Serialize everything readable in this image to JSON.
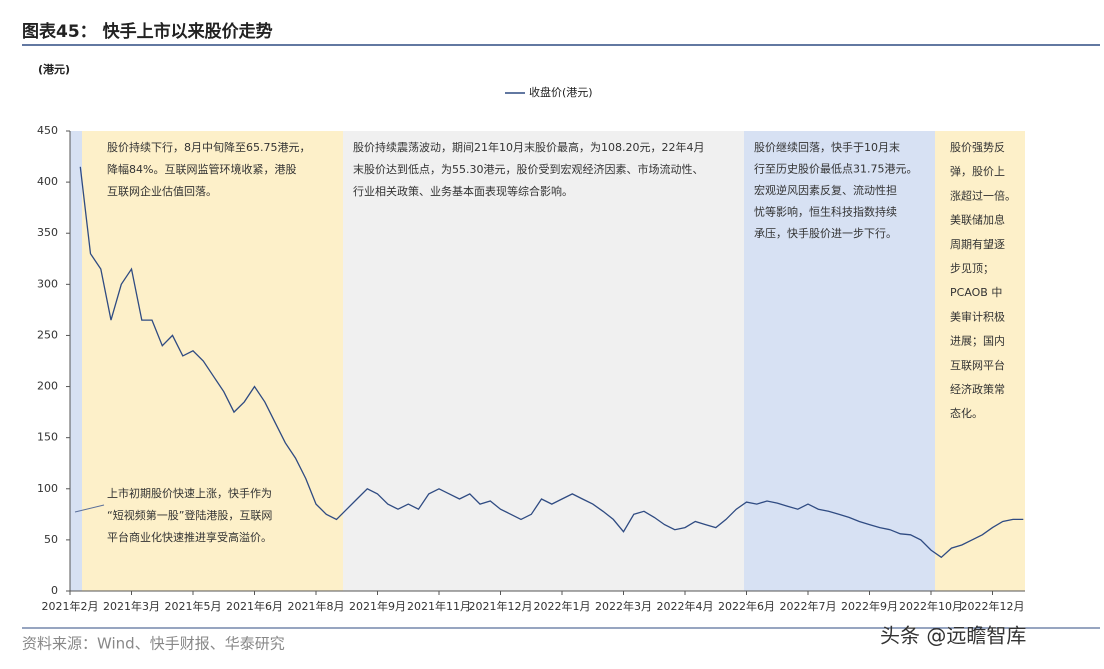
{
  "chart_data": {
    "type": "line",
    "title": "图表45： 快手上市以来股价走势",
    "y_label": "(港元)",
    "source": "资料来源：Wind、快手财报、华泰研究",
    "watermark": "头条 @远瞻智库",
    "categories": [
      "2021年2月",
      null,
      null,
      null,
      null,
      null,
      "2021年3月",
      null,
      null,
      null,
      null,
      null,
      "2021年5月",
      null,
      null,
      null,
      null,
      null,
      "2021年6月",
      null,
      null,
      null,
      null,
      null,
      "2021年8月",
      null,
      null,
      null,
      null,
      null,
      "2021年9月",
      null,
      null,
      null,
      null,
      null,
      "2021年11月",
      null,
      null,
      null,
      null,
      null,
      "2021年12月",
      null,
      null,
      null,
      null,
      null,
      "2022年1月",
      null,
      null,
      null,
      null,
      null,
      "2022年3月",
      null,
      null,
      null,
      null,
      null,
      "2022年4月",
      null,
      null,
      null,
      null,
      null,
      "2022年6月",
      null,
      null,
      null,
      null,
      null,
      "2022年7月",
      null,
      null,
      null,
      null,
      null,
      "2022年9月",
      null,
      null,
      null,
      null,
      null,
      "2022年10月",
      null,
      null,
      null,
      null,
      null,
      "2022年12月",
      null,
      null,
      null
    ],
    "series": [
      {
        "name": "收盘价(港元)",
        "color": "#2f4b82",
        "values": [
          null,
          415,
          330,
          315,
          265,
          300,
          315,
          265,
          265,
          240,
          250,
          230,
          235,
          225,
          210,
          195,
          175,
          185,
          200,
          185,
          165,
          145,
          130,
          110,
          85,
          75,
          70,
          80,
          90,
          100,
          95,
          85,
          80,
          85,
          80,
          95,
          100,
          95,
          90,
          95,
          85,
          88,
          80,
          75,
          70,
          75,
          90,
          85,
          90,
          95,
          90,
          85,
          78,
          70,
          58,
          75,
          78,
          72,
          65,
          60,
          62,
          68,
          65,
          62,
          70,
          80,
          87,
          85,
          88,
          86,
          83,
          80,
          85,
          80,
          78,
          75,
          72,
          68,
          65,
          62,
          60,
          56,
          55,
          50,
          40,
          33,
          42,
          45,
          50,
          55,
          62,
          68,
          70,
          70
        ]
      }
    ],
    "ylim": [
      0,
      450
    ],
    "yticks": [
      0,
      50,
      100,
      150,
      200,
      250,
      300,
      350,
      400,
      450
    ],
    "annotations": [
      {
        "lines": [
          "股价持续下行，8月中旬降至65.75港元，",
          "降幅84%。互联网监管环境收紧，港股",
          "互联网企业估值回落。"
        ]
      },
      {
        "lines": [
          "股价持续震荡波动，期间21年10月末股价最高，为108.20元，22年4月",
          "末股价达到低点，为55.30港元，股价受到宏观经济因素、市场流动性、",
          "行业相关政策、业务基本面表现等综合影响。"
        ]
      },
      {
        "lines": [
          "股价继续回落，快手于10月末",
          "行至历史股价最低点31.75港元。",
          "宏观逆风因素反复、流动性担",
          "忧等影响，恒生科技指数持续",
          "承压，快手股价进一步下行。"
        ]
      },
      {
        "lines": [
          "股价强势反",
          "弹，股价上",
          "涨超过一倍。",
          "美联储加息",
          "周期有望逐",
          "步见顶；",
          "PCAOB 中",
          "美审计积极",
          "进展；国内",
          "互联网平台",
          "经济政策常",
          "态化。"
        ]
      },
      {
        "lines": [
          "上市初期股价快速上涨，快手作为",
          "“短视频第一股”登陆港股，互联网",
          "平台商业化快速推进享受高溢价。"
        ]
      }
    ]
  }
}
